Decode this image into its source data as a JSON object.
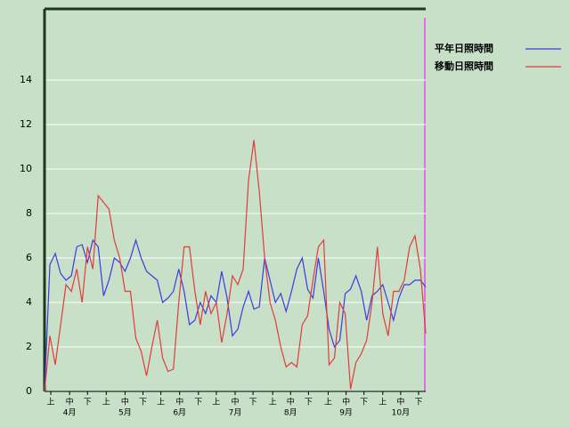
{
  "chart_data": {
    "type": "line",
    "x": [
      0,
      3,
      6,
      9,
      12,
      15,
      18,
      21,
      24,
      27,
      30,
      33,
      36,
      39,
      42,
      45,
      48,
      51,
      54,
      57,
      60,
      63,
      66,
      69,
      72,
      75,
      78,
      81,
      84,
      87,
      90,
      93,
      96,
      99,
      102,
      105,
      108,
      111,
      114,
      117,
      120,
      123,
      126,
      129,
      132,
      135,
      138,
      141,
      144,
      147,
      150,
      153,
      156,
      159,
      162,
      165,
      168,
      171,
      174,
      177,
      180,
      183,
      186,
      189,
      192,
      195,
      198,
      201,
      204,
      207,
      210,
      213
    ],
    "series": [
      {
        "name": "平年日照時間",
        "color": "#3c3ce0",
        "values": [
          0,
          5.7,
          6.2,
          5.3,
          5.0,
          5.2,
          6.5,
          6.6,
          5.8,
          6.8,
          6.5,
          4.3,
          5.0,
          6.0,
          5.8,
          5.4,
          6.0,
          6.8,
          6.0,
          5.4,
          5.2,
          5.0,
          4.0,
          4.2,
          4.5,
          5.5,
          4.5,
          3.0,
          3.2,
          4.0,
          3.5,
          4.3,
          4.0,
          5.4,
          4.2,
          2.5,
          2.8,
          3.8,
          4.5,
          3.7,
          3.8,
          6.0,
          5.0,
          4.0,
          4.4,
          3.6,
          4.5,
          5.5,
          6.0,
          4.6,
          4.2,
          6.0,
          4.5,
          2.8,
          2.0,
          2.3,
          4.4,
          4.6,
          5.2,
          4.5,
          3.2,
          4.3,
          4.5,
          4.8,
          4.0,
          3.2,
          4.2,
          4.8,
          4.8,
          5.0,
          5.0,
          4.7
        ]
      },
      {
        "name": "移動日照時間",
        "color": "#e03c3c",
        "values": [
          0,
          2.5,
          1.2,
          3.0,
          4.8,
          4.5,
          5.5,
          4.0,
          6.5,
          5.5,
          8.8,
          8.5,
          8.2,
          6.8,
          6.0,
          4.5,
          4.5,
          2.4,
          1.8,
          0.7,
          2.0,
          3.2,
          1.5,
          0.9,
          1.0,
          4.0,
          6.5,
          6.5,
          4.5,
          3.0,
          4.5,
          3.5,
          4.0,
          2.2,
          3.5,
          5.2,
          4.8,
          5.5,
          9.5,
          11.3,
          9.0,
          6.0,
          4.0,
          3.2,
          2.0,
          1.1,
          1.3,
          1.1,
          3.0,
          3.4,
          5.0,
          6.5,
          6.8,
          1.2,
          1.5,
          4.0,
          3.5,
          0.1,
          1.3,
          1.7,
          2.3,
          4.0,
          6.5,
          3.5,
          2.5,
          4.5,
          4.5,
          5.0,
          6.5,
          7.0,
          5.5,
          2.6
        ]
      }
    ],
    "xlim": [
      0,
      213
    ],
    "ylim": [
      0,
      17.2
    ],
    "yticks": [
      0,
      2,
      4,
      6,
      8,
      10,
      12,
      14
    ],
    "xticks": [
      {
        "value": 3.5,
        "label": "上"
      },
      {
        "value": 14,
        "label": "中"
      },
      {
        "value": 24,
        "label": "下"
      },
      {
        "value": 34.5,
        "label": "上"
      },
      {
        "value": 45,
        "label": "中"
      },
      {
        "value": 55,
        "label": "下"
      },
      {
        "value": 65,
        "label": "上"
      },
      {
        "value": 75.5,
        "label": "中"
      },
      {
        "value": 86,
        "label": "下"
      },
      {
        "value": 96,
        "label": "上"
      },
      {
        "value": 106.5,
        "label": "中"
      },
      {
        "value": 116.5,
        "label": "下"
      },
      {
        "value": 127.5,
        "label": "上"
      },
      {
        "value": 137.5,
        "label": "中"
      },
      {
        "value": 147.5,
        "label": "下"
      },
      {
        "value": 158.5,
        "label": "上"
      },
      {
        "value": 168.5,
        "label": "中"
      },
      {
        "value": 178.5,
        "label": "下"
      },
      {
        "value": 189,
        "label": "上"
      },
      {
        "value": 199,
        "label": "中"
      },
      {
        "value": 209,
        "label": "下"
      }
    ],
    "month_labels": [
      {
        "value": 14,
        "label": "4月"
      },
      {
        "value": 45,
        "label": "5月"
      },
      {
        "value": 75.5,
        "label": "6月"
      },
      {
        "value": 106.5,
        "label": "7月"
      },
      {
        "value": 137.5,
        "label": "8月"
      },
      {
        "value": 168.5,
        "label": "9月"
      },
      {
        "value": 199,
        "label": "10月"
      }
    ],
    "grid": true
  }
}
